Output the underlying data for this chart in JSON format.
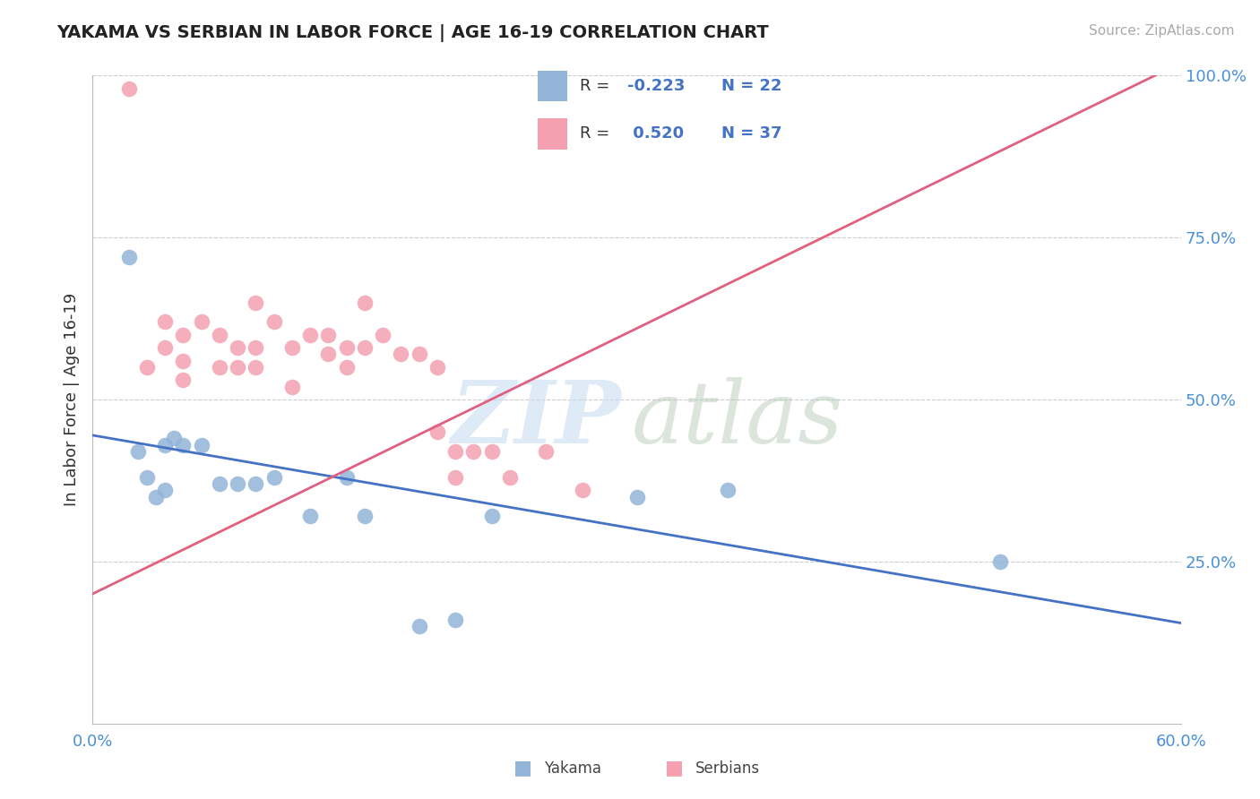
{
  "title": "YAKAMA VS SERBIAN IN LABOR FORCE | AGE 16-19 CORRELATION CHART",
  "source_text": "Source: ZipAtlas.com",
  "ylabel": "In Labor Force | Age 16-19",
  "xlim": [
    0.0,
    0.6
  ],
  "ylim": [
    0.0,
    1.0
  ],
  "ytick_labels": [
    "25.0%",
    "50.0%",
    "75.0%",
    "100.0%"
  ],
  "ytick_values": [
    0.25,
    0.5,
    0.75,
    1.0
  ],
  "legend_r_yakama": "-0.223",
  "legend_n_yakama": "22",
  "legend_r_serbian": "0.520",
  "legend_n_serbian": "37",
  "yakama_color": "#92b4d8",
  "serbian_color": "#f4a0b0",
  "trend_yakama_color": "#4472c4",
  "trend_serbian_color": "#e06080",
  "background_color": "#ffffff",
  "grid_color": "#cccccc",
  "yakama_x": [
    0.02,
    0.025,
    0.03,
    0.035,
    0.04,
    0.04,
    0.045,
    0.05,
    0.06,
    0.07,
    0.08,
    0.09,
    0.1,
    0.12,
    0.14,
    0.15,
    0.18,
    0.2,
    0.22,
    0.3,
    0.35,
    0.5
  ],
  "yakama_y": [
    0.72,
    0.42,
    0.38,
    0.35,
    0.43,
    0.36,
    0.44,
    0.43,
    0.43,
    0.37,
    0.37,
    0.37,
    0.38,
    0.32,
    0.38,
    0.32,
    0.15,
    0.16,
    0.32,
    0.35,
    0.36,
    0.25
  ],
  "serbian_x": [
    0.02,
    0.03,
    0.04,
    0.04,
    0.05,
    0.05,
    0.05,
    0.06,
    0.07,
    0.07,
    0.08,
    0.08,
    0.09,
    0.09,
    0.09,
    0.1,
    0.11,
    0.11,
    0.12,
    0.13,
    0.13,
    0.14,
    0.14,
    0.15,
    0.15,
    0.16,
    0.17,
    0.18,
    0.19,
    0.19,
    0.2,
    0.2,
    0.21,
    0.22,
    0.23,
    0.25,
    0.27
  ],
  "serbian_y": [
    0.98,
    0.55,
    0.62,
    0.58,
    0.6,
    0.56,
    0.53,
    0.62,
    0.6,
    0.55,
    0.58,
    0.55,
    0.65,
    0.58,
    0.55,
    0.62,
    0.58,
    0.52,
    0.6,
    0.6,
    0.57,
    0.58,
    0.55,
    0.65,
    0.58,
    0.6,
    0.57,
    0.57,
    0.55,
    0.45,
    0.38,
    0.42,
    0.42,
    0.42,
    0.38,
    0.42,
    0.36
  ],
  "trend_yakama_x0": 0.0,
  "trend_yakama_y0": 0.445,
  "trend_yakama_x1": 0.6,
  "trend_yakama_y1": 0.155,
  "trend_serbian_x0": 0.0,
  "trend_serbian_y0": 0.2,
  "trend_serbian_x1": 0.6,
  "trend_serbian_y1": 1.02
}
